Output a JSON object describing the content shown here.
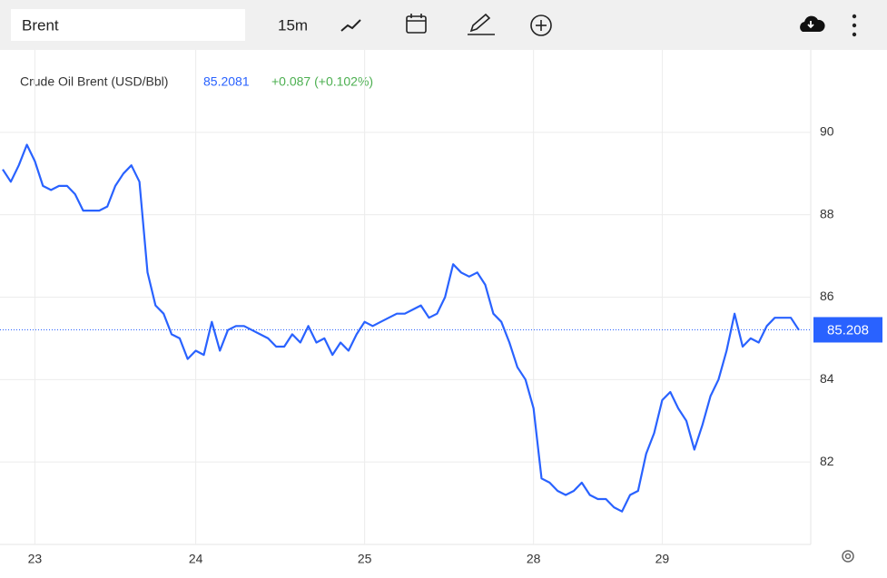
{
  "toolbar": {
    "symbol": "Brent",
    "interval": "15m"
  },
  "chart_data": {
    "type": "line",
    "title": "Crude Oil Brent (USD/Bbl)",
    "last_price": "85.2081",
    "change": "+0.087 (+0.102%)",
    "color": "#2962ff",
    "change_color": "#4caf50",
    "grid": true,
    "categories": [
      null,
      null,
      null,
      null,
      "23",
      null,
      null,
      null,
      null,
      null,
      null,
      null,
      null,
      null,
      null,
      null,
      null,
      null,
      null,
      null,
      null,
      null,
      null,
      null,
      "24",
      null,
      null,
      null,
      null,
      null,
      null,
      null,
      null,
      null,
      null,
      null,
      null,
      null,
      null,
      null,
      null,
      null,
      null,
      null,
      null,
      "25",
      null,
      null,
      null,
      null,
      null,
      null,
      null,
      null,
      null,
      null,
      null,
      null,
      null,
      null,
      null,
      null,
      null,
      null,
      null,
      null,
      "28",
      null,
      null,
      null,
      null,
      null,
      null,
      null,
      null,
      null,
      null,
      null,
      null,
      null,
      null,
      null,
      "29",
      null,
      null,
      null,
      null,
      null,
      null,
      null,
      null,
      null,
      null,
      null,
      null,
      null,
      null,
      null,
      null,
      null
    ],
    "values": [
      89.1,
      88.8,
      89.2,
      89.7,
      89.3,
      88.7,
      88.6,
      88.7,
      88.7,
      88.5,
      88.1,
      88.1,
      88.1,
      88.2,
      88.7,
      89.0,
      89.2,
      88.8,
      86.6,
      85.8,
      85.6,
      85.1,
      85.0,
      84.5,
      84.7,
      84.6,
      85.4,
      84.7,
      85.2,
      85.3,
      85.3,
      85.2,
      85.1,
      85.0,
      84.8,
      84.8,
      85.1,
      84.9,
      85.3,
      84.9,
      85.0,
      84.6,
      84.9,
      84.7,
      85.1,
      85.4,
      85.3,
      85.4,
      85.5,
      85.6,
      85.6,
      85.7,
      85.8,
      85.5,
      85.6,
      86.0,
      86.8,
      86.6,
      86.5,
      86.6,
      86.3,
      85.6,
      85.4,
      84.9,
      84.3,
      84.0,
      83.3,
      81.6,
      81.5,
      81.3,
      81.2,
      81.3,
      81.5,
      81.2,
      81.1,
      81.1,
      80.9,
      80.8,
      81.2,
      81.3,
      82.2,
      82.7,
      83.5,
      83.7,
      83.3,
      83.0,
      82.3,
      82.9,
      83.6,
      84.0,
      84.7,
      85.6,
      84.8,
      85.0,
      84.9,
      85.3,
      85.5,
      85.5,
      85.5,
      85.2
    ],
    "last_value": 85.208,
    "ylim": [
      80,
      92
    ],
    "yticks": [
      82,
      84,
      86,
      88,
      90
    ]
  }
}
